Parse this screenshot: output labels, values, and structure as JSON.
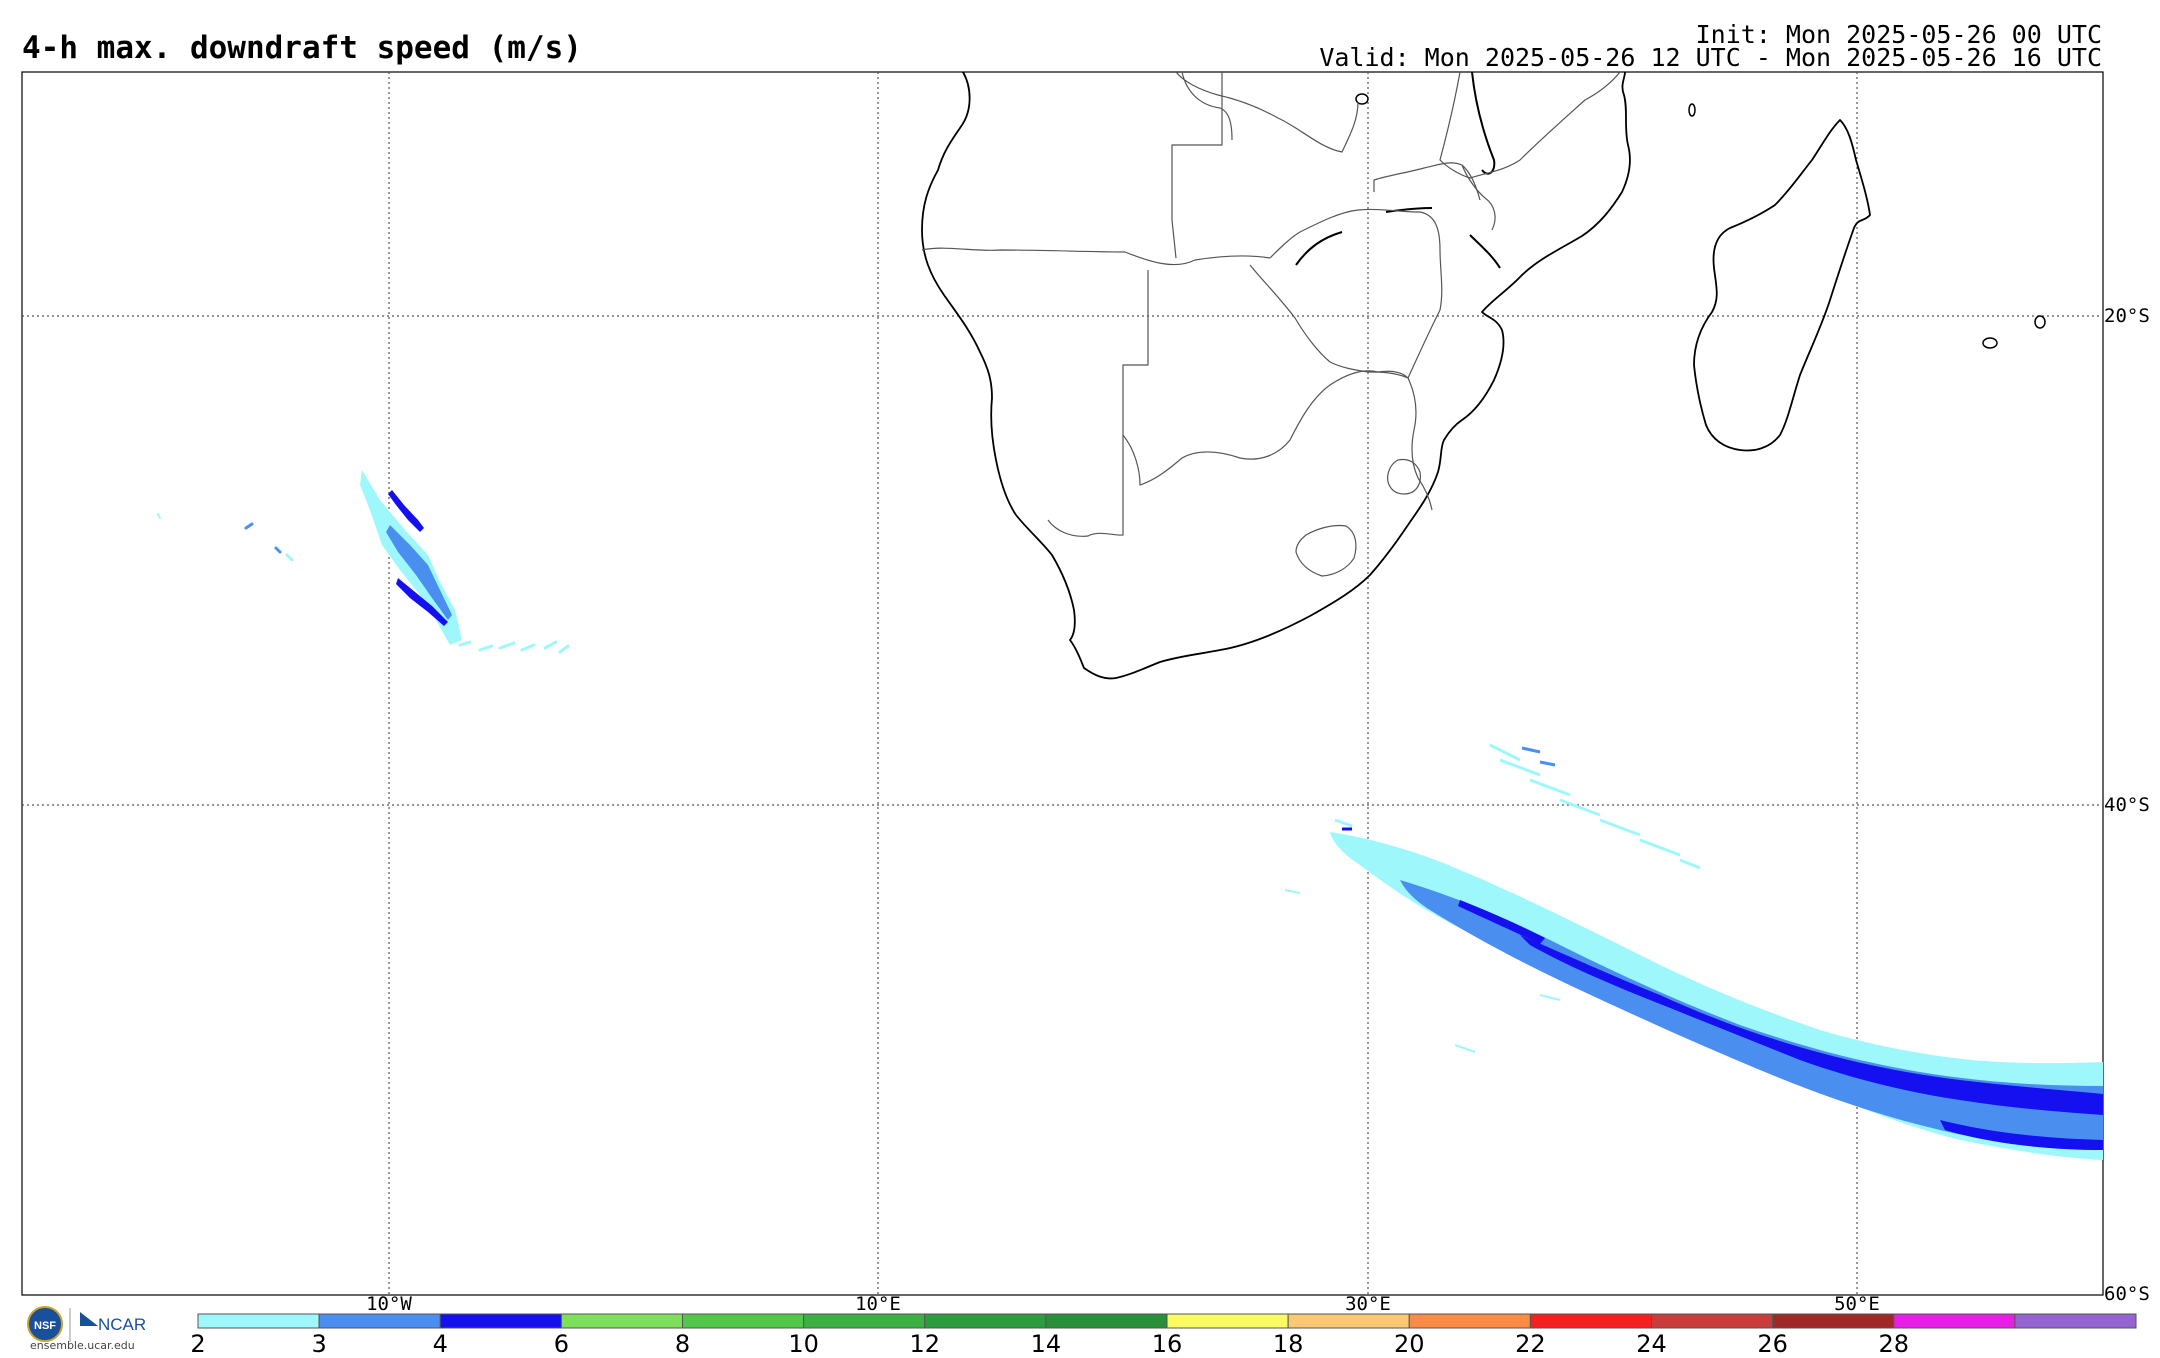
{
  "header": {
    "title": "4-h max. downdraft speed (m/s)",
    "init": "Init: Mon 2025-05-26 00 UTC",
    "valid": "Valid: Mon 2025-05-26 12 UTC - Mon 2025-05-26 16 UTC"
  },
  "map": {
    "lon_labels": [
      "10°W",
      "10°E",
      "30°E",
      "50°E"
    ],
    "lat_labels": [
      "20°S",
      "40°S",
      "60°S"
    ],
    "gridline_style": "dotted",
    "region": "Southern Africa and South Atlantic / southwest Indian Ocean"
  },
  "colorbar": {
    "ticks": [
      "2",
      "3",
      "4",
      "6",
      "8",
      "10",
      "12",
      "14",
      "16",
      "18",
      "20",
      "22",
      "24",
      "26",
      "28"
    ],
    "colors": [
      "#9ef7fb",
      "#4a8ff0",
      "#1410f0",
      "#7ee05a",
      "#52c84a",
      "#3cb043",
      "#2c9c3e",
      "#29903a",
      "#fafa64",
      "#fbc873",
      "#fa8c46",
      "#f52020",
      "#c83c3c",
      "#a02828",
      "#e61ee6",
      "#9664d2"
    ]
  },
  "logo": {
    "org1": "NSF",
    "org2": "NCAR",
    "url": "ensemble.ucar.edu"
  },
  "colors": {
    "light": "#9ef7fb",
    "mid": "#4a8ff0",
    "dark": "#1410f0",
    "coast": "#000000",
    "border": "#555555",
    "grid": "#555555"
  }
}
